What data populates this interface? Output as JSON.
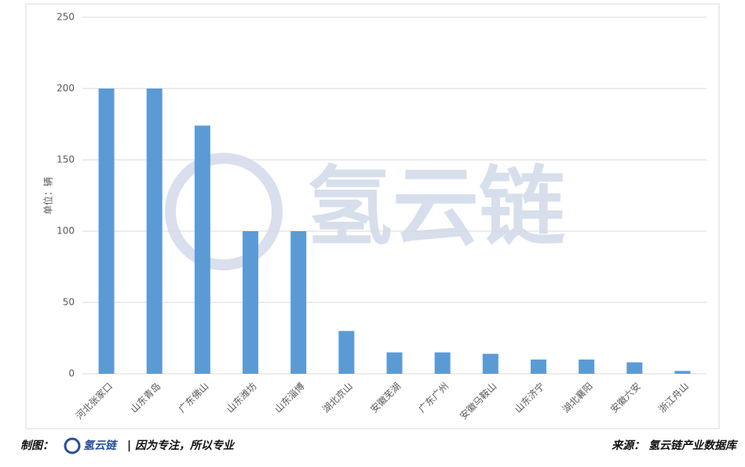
{
  "chart_data": {
    "type": "bar",
    "y_label": "单位：辆",
    "categories": [
      "河北张家口",
      "山东青岛",
      "广东佛山",
      "山东潍坊",
      "山东淄博",
      "湖北京山",
      "安徽芜湖",
      "广东广州",
      "安徽马鞍山",
      "山东济宁",
      "湖北襄阳",
      "安徽六安",
      "浙江舟山"
    ],
    "values": [
      200,
      200,
      174,
      100,
      100,
      30,
      15,
      15,
      14,
      10,
      10,
      8,
      2
    ],
    "color": "#5b9bd5",
    "ylim": [
      0,
      250
    ],
    "yticks": [
      0,
      50,
      100,
      150,
      200,
      250
    ],
    "grid": true
  },
  "watermark": "氢云链",
  "footer": {
    "maker_label": "制图：",
    "maker_brand": "氢云链",
    "slogan": "| 因为专注，所以专业",
    "source": "来源： 氢云链产业数据库"
  }
}
